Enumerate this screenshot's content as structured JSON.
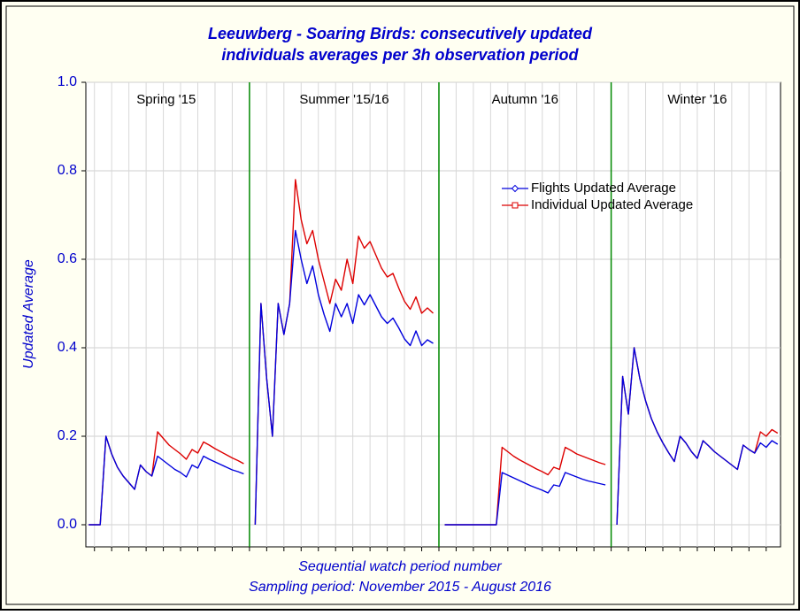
{
  "chart_data": {
    "type": "line",
    "title": [
      "Leeuwberg - Soaring Birds: consecutively updated",
      "individuals averages per 3h observation period"
    ],
    "x_label": [
      "Sequential watch period number",
      "Sampling period: November 2015 - August 2016"
    ],
    "y_label": "Updated Average",
    "annotations": [
      "Spring '15",
      "Summer '15/16",
      "Autumn '16",
      "Winter '16"
    ],
    "categories": [
      null,
      null,
      null,
      null,
      null,
      null,
      null,
      null,
      null,
      null,
      null,
      null,
      null,
      null,
      null,
      null,
      null,
      null,
      null,
      null,
      null,
      null,
      null,
      null,
      null,
      null,
      null,
      null,
      null,
      null,
      null,
      null,
      null,
      null,
      null,
      null,
      null,
      null,
      null,
      null,
      null,
      null,
      null,
      null,
      null,
      null,
      null,
      null,
      null,
      null,
      null,
      null,
      null,
      null,
      null,
      null,
      null,
      null,
      null,
      null,
      null,
      null,
      null,
      null,
      null,
      null,
      null,
      null,
      null,
      null,
      null,
      null,
      null,
      null,
      null,
      null,
      null,
      null,
      null,
      null,
      null,
      null,
      null,
      null,
      null,
      null,
      null,
      null,
      null,
      null,
      null,
      null,
      null,
      null,
      null,
      null,
      null,
      null,
      null,
      null,
      null,
      null,
      null,
      null,
      null,
      null,
      null,
      null,
      null,
      null,
      null,
      null,
      null,
      null,
      null,
      null,
      null,
      null,
      null,
      null,
      null
    ],
    "series": [
      {
        "name": "Flights Updated Average",
        "color": "#0000dd",
        "marker": "diamond",
        "values": [
          0,
          0,
          0,
          0.2,
          0.16,
          0.13,
          0.11,
          0.095,
          0.08,
          0.135,
          0.12,
          0.11,
          0.155,
          0.145,
          0.135,
          0.125,
          0.118,
          0.108,
          0.135,
          0.128,
          0.155,
          0.148,
          0.142,
          0.136,
          0.13,
          0.124,
          0.12,
          0.115,
          null,
          0,
          0.5,
          0.33,
          0.2,
          0.5,
          0.43,
          0.5,
          0.665,
          0.6,
          0.545,
          0.585,
          0.52,
          0.475,
          0.437,
          0.5,
          0.47,
          0.5,
          0.455,
          0.52,
          0.497,
          0.52,
          0.495,
          0.47,
          0.455,
          0.467,
          0.445,
          0.42,
          0.405,
          0.438,
          0.405,
          0.418,
          0.41,
          null,
          0,
          0,
          0,
          0,
          0,
          0,
          0,
          0,
          0,
          0,
          0.118,
          0.112,
          0.106,
          0.1,
          0.094,
          0.088,
          0.083,
          0.078,
          0.072,
          0.09,
          0.087,
          0.118,
          0.113,
          0.108,
          0.103,
          0.099,
          0.096,
          0.093,
          0.09,
          null,
          0,
          0.335,
          0.25,
          0.4,
          0.33,
          0.28,
          0.24,
          0.21,
          0.185,
          0.163,
          0.143,
          0.2,
          0.185,
          0.165,
          0.15,
          0.19,
          0.178,
          0.165,
          0.155,
          0.145,
          0.135,
          0.125,
          0.18,
          0.17,
          0.162,
          0.185,
          0.175,
          0.19,
          0.182
        ]
      },
      {
        "name": "Individual Updated Average",
        "color": "#dd0000",
        "marker": "square",
        "values": [
          0,
          0,
          0,
          0.2,
          0.16,
          0.13,
          0.11,
          0.095,
          0.08,
          0.135,
          0.12,
          0.11,
          0.21,
          0.195,
          0.18,
          0.17,
          0.16,
          0.148,
          0.17,
          0.162,
          0.187,
          0.18,
          0.172,
          0.165,
          0.158,
          0.151,
          0.145,
          0.138,
          null,
          0,
          0.5,
          0.33,
          0.2,
          0.5,
          0.43,
          0.5,
          0.78,
          0.69,
          0.635,
          0.665,
          0.6,
          0.55,
          0.5,
          0.555,
          0.53,
          0.6,
          0.545,
          0.652,
          0.625,
          0.64,
          0.61,
          0.58,
          0.56,
          0.568,
          0.535,
          0.505,
          0.487,
          0.515,
          0.478,
          0.49,
          0.478,
          null,
          0,
          0,
          0,
          0,
          0,
          0,
          0,
          0,
          0,
          0,
          0.175,
          0.165,
          0.155,
          0.147,
          0.14,
          0.133,
          0.126,
          0.12,
          0.113,
          0.13,
          0.125,
          0.175,
          0.168,
          0.16,
          0.155,
          0.15,
          0.145,
          0.14,
          0.136,
          null,
          0,
          0.335,
          0.25,
          0.4,
          0.33,
          0.28,
          0.24,
          0.21,
          0.185,
          0.163,
          0.143,
          0.2,
          0.185,
          0.165,
          0.15,
          0.19,
          0.178,
          0.165,
          0.155,
          0.145,
          0.135,
          0.125,
          0.18,
          0.17,
          0.162,
          0.21,
          0.2,
          0.215,
          0.207
        ]
      }
    ],
    "ylim": [
      -0.05,
      1.0
    ],
    "yticks": [
      {
        "value": 0,
        "label": "0.0"
      },
      0.2,
      0.4,
      0.6,
      0.8,
      {
        "value": 1,
        "label": "1.0"
      }
    ],
    "grid": true,
    "separator_color": "#008800",
    "legend": "upper right"
  }
}
